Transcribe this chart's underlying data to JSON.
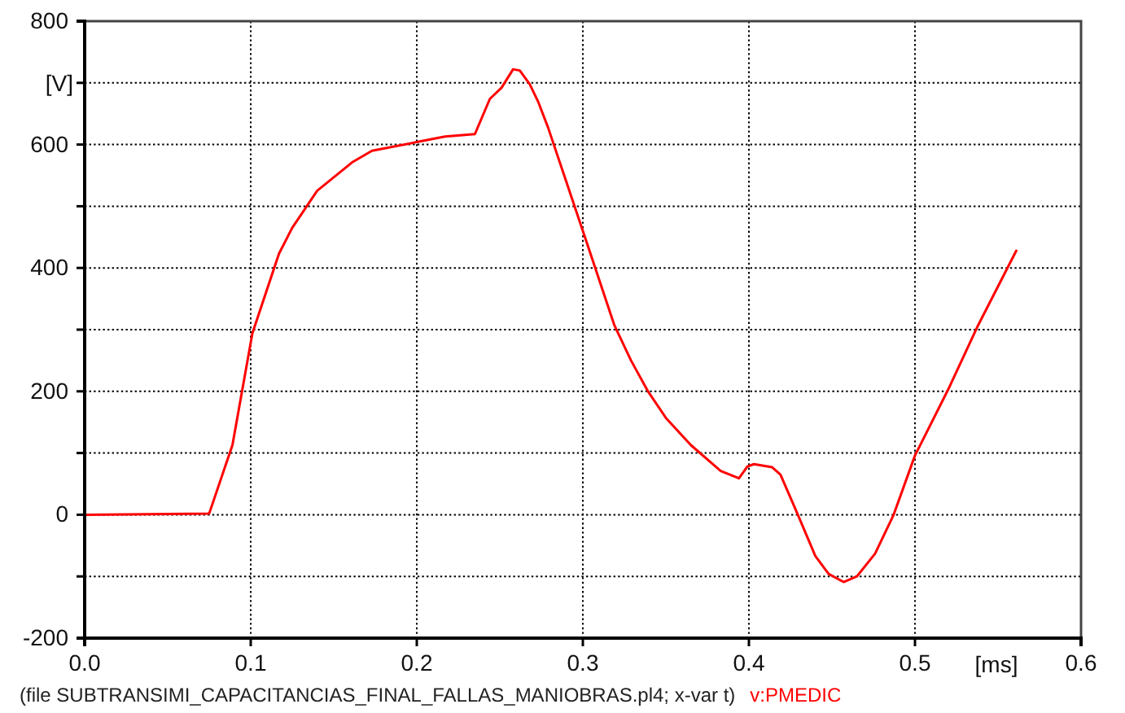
{
  "chart_data": {
    "type": "line",
    "xlabel": "[ms]",
    "ylabel": "[V]",
    "annotations": [
      "(file SUBTRANSIMI_CAPACITANCIAS_FINAL_FALLAS_MANIOBRAS.pl4; x-var t)"
    ],
    "x": [
      0,
      0.075,
      0.089,
      0.101,
      0.117,
      0.125,
      0.14,
      0.161,
      0.173,
      0.2,
      0.217,
      0.235,
      0.244,
      0.251,
      0.258,
      0.262,
      0.268,
      0.273,
      0.279,
      0.29,
      0.301,
      0.319,
      0.329,
      0.339,
      0.35,
      0.365,
      0.383,
      0.394,
      0.399,
      0.403,
      0.414,
      0.419,
      0.429,
      0.44,
      0.448,
      0.457,
      0.465,
      0.476,
      0.487,
      0.5,
      0.52,
      0.538,
      0.561
    ],
    "series": [
      {
        "name": "v:PMEDIC",
        "color": "#ff0000",
        "values": [
          0,
          2,
          113,
          294,
          423,
          465,
          525,
          571,
          590,
          604,
          613,
          617,
          674,
          692,
          722,
          720,
          698,
          670,
          628,
          540,
          452,
          307,
          250,
          201,
          157,
          113,
          71,
          59,
          78,
          82,
          77,
          65,
          3,
          -67,
          -96,
          -109,
          -100,
          -63,
          -1,
          96,
          203,
          307,
          428
        ]
      }
    ],
    "xlim": [
      0,
      0.6
    ],
    "ylim": [
      -200,
      800
    ],
    "xticks": [
      {
        "value": 0,
        "label": "0.0"
      },
      0.1,
      0.2,
      0.3,
      0.4,
      0.5,
      0.6
    ],
    "yticks": [
      -200,
      {
        "value": -100,
        "label": null
      },
      0,
      {
        "value": 100,
        "label": null
      },
      200,
      {
        "value": 300,
        "label": null
      },
      400,
      {
        "value": 500,
        "label": null
      },
      600,
      {
        "value": 700,
        "label": null
      },
      800
    ],
    "grid": true,
    "legend": "bottom"
  }
}
